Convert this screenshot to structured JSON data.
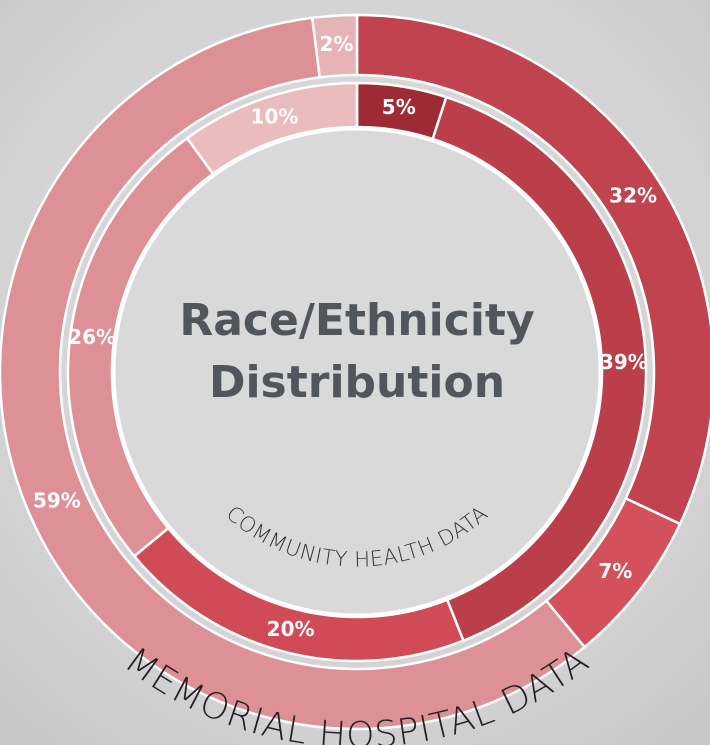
{
  "chart_data": {
    "type": "donut",
    "title": "Race/Ethnicity Distribution",
    "series": [
      {
        "name": "MEMORIAL HOSPITAL DATA",
        "values": [
          32,
          7,
          59,
          2
        ],
        "value_labels": [
          "32%",
          "7%",
          "59%",
          "2%"
        ],
        "colors": [
          "#c0434f",
          "#d4505b",
          "#dd9096",
          "#e6b3b6"
        ]
      },
      {
        "name": "COMMUNITY HEALTH DATA",
        "values": [
          5,
          39,
          20,
          26,
          10
        ],
        "value_labels": [
          "5%",
          "39%",
          "20%",
          "26%",
          "10%"
        ],
        "colors": [
          "#9e2a36",
          "#bb3f4b",
          "#d04b56",
          "#dd9096",
          "#ebbcbe"
        ]
      }
    ]
  }
}
